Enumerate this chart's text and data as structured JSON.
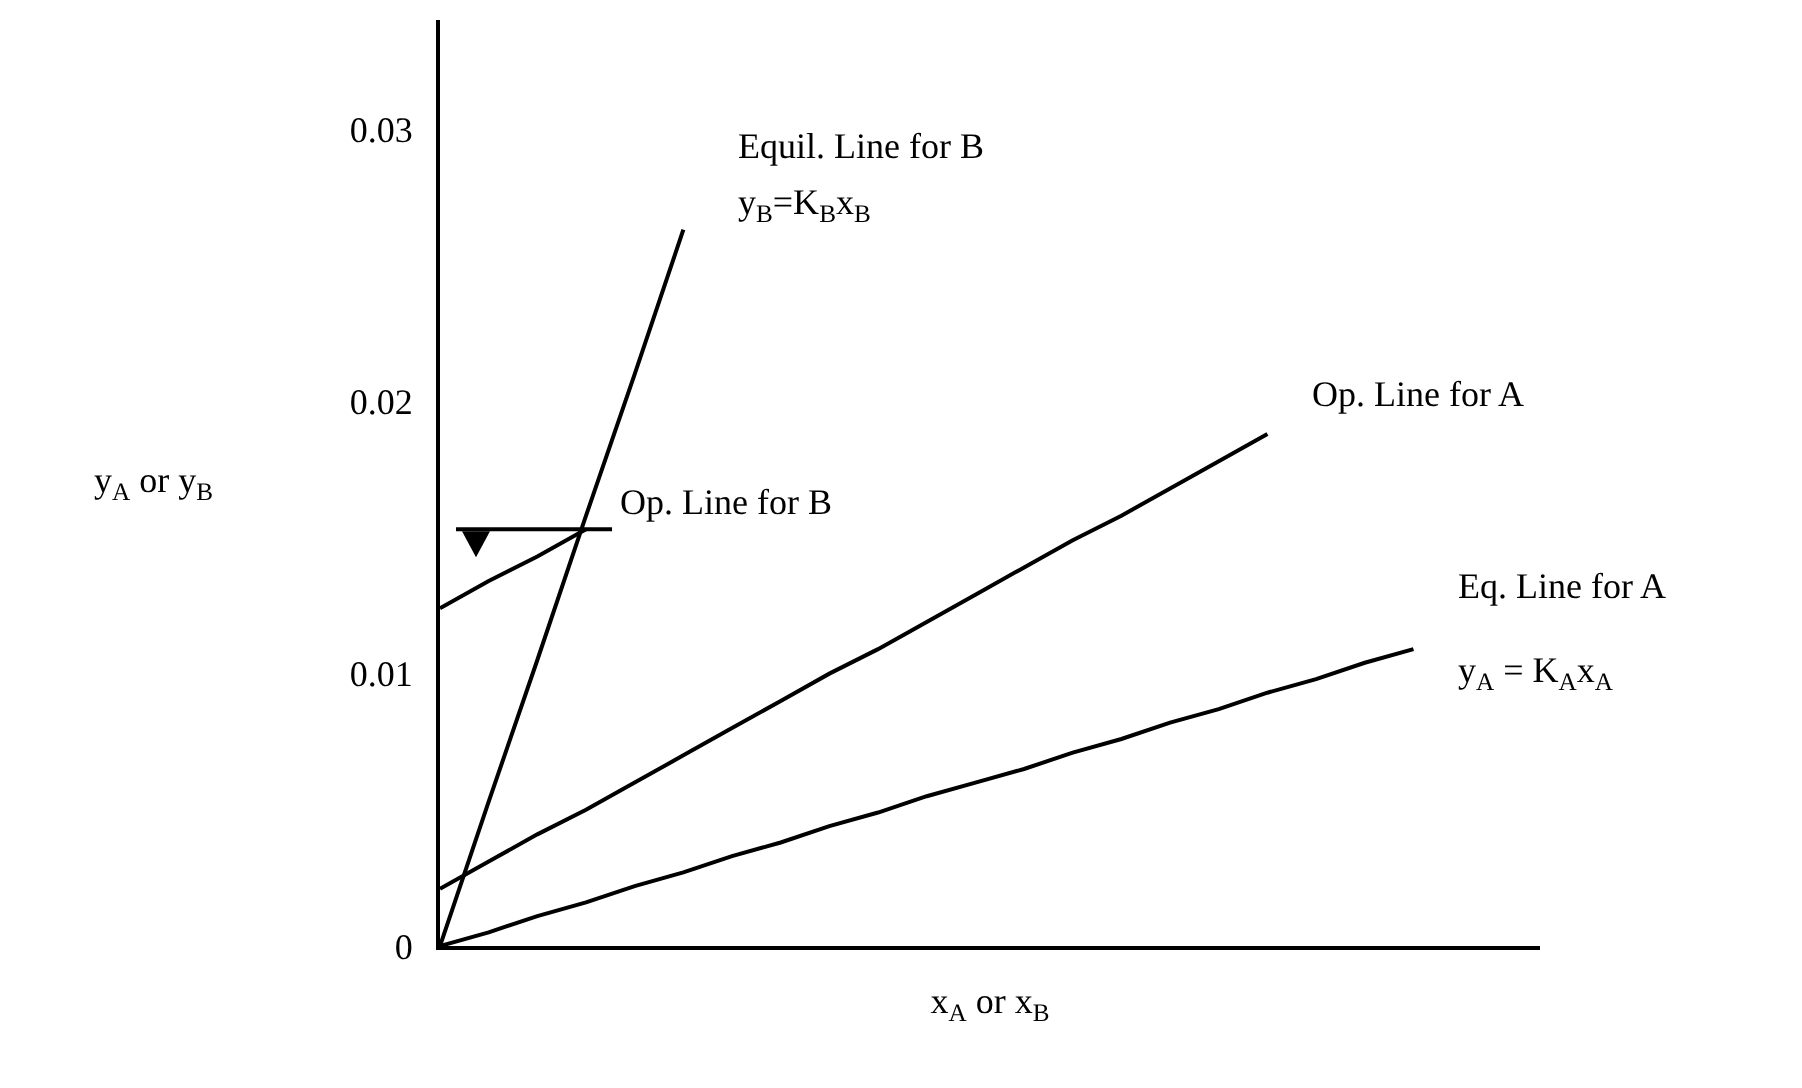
{
  "chart_data": {
    "type": "line",
    "xlabel": "x$_{A}$ or x$_{B}$",
    "ylabel": "y$_{A}$ or y$_{B}$",
    "categories": [
      null,
      null,
      null,
      null,
      null,
      null,
      null,
      null,
      null,
      null,
      null,
      null,
      null,
      null,
      null,
      null,
      null,
      null,
      null,
      null,
      null,
      null,
      null
    ],
    "ylim": [
      0,
      0.034
    ],
    "yticks": [
      0,
      0.01,
      0.02,
      0.03
    ],
    "tick_labels": "y",
    "grid": false,
    "legend": false,
    "marker": "none",
    "line_style": "solid",
    "series": [
      {
        "name": "Equil. Line for B",
        "color": "#000000",
        "values": [
          0,
          0.0053,
          0.0105,
          0.0158,
          0.021,
          0.0263,
          null,
          null,
          null,
          null,
          null,
          null,
          null,
          null,
          null,
          null,
          null,
          null,
          null,
          null,
          null,
          null,
          null
        ]
      },
      {
        "name": "Op. Line for B",
        "color": "#000000",
        "values": [
          0.0124,
          0.0134,
          0.0143,
          0.0153,
          null,
          null,
          null,
          null,
          null,
          null,
          null,
          null,
          null,
          null,
          null,
          null,
          null,
          null,
          null,
          null,
          null,
          null,
          null
        ]
      },
      {
        "name": "Op. Line for A",
        "color": "#000000",
        "values": [
          0.0021,
          0.0031,
          0.0041,
          0.005,
          0.006,
          0.007,
          0.008,
          0.009,
          0.01,
          0.0109,
          0.0119,
          0.0129,
          0.0139,
          0.0149,
          0.0158,
          0.0168,
          0.0178,
          0.0188,
          null,
          null,
          null,
          null,
          null
        ]
      },
      {
        "name": "Eq. Line for A",
        "color": "#000000",
        "values": [
          0,
          0.0005,
          0.0011,
          0.0016,
          0.0022,
          0.0027,
          0.0033,
          0.0038,
          0.0044,
          0.0049,
          0.0055,
          0.006,
          0.0065,
          0.0071,
          0.0076,
          0.0082,
          0.0087,
          0.0093,
          0.0098,
          0.0104,
          0.0109,
          null,
          null
        ]
      }
    ],
    "annotations": [
      "y$_{B}$=K$_{B}$x$_{B}$",
      "y$_{A}$ = K$_{A}$x$_{A}$"
    ]
  }
}
